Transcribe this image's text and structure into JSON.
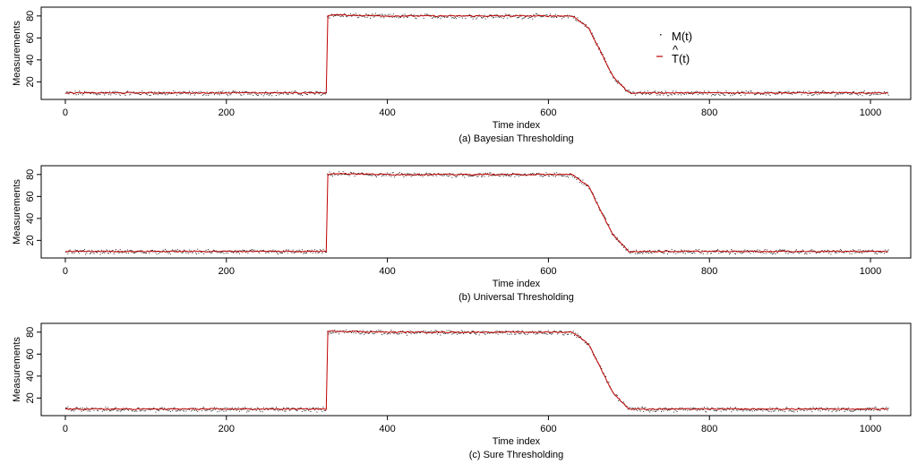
{
  "colors": {
    "observed_points": "#222222",
    "estimate_line": "#c00000",
    "frame": "#000000",
    "background": "#ffffff"
  },
  "legend": {
    "observed_label": "M(t)",
    "estimate_label": "T(t)",
    "estimate_hat": "^"
  },
  "chart_data": [
    {
      "type": "line",
      "caption": "(a) Bayesian Thresholding",
      "xlabel": "Time index",
      "ylabel": "Measurements",
      "xlim": [
        -30,
        1050
      ],
      "ylim": [
        4,
        88
      ],
      "xticks": [
        0,
        200,
        400,
        600,
        800,
        1000
      ],
      "yticks": [
        20,
        40,
        60,
        80
      ],
      "legend": "top-right",
      "series": [
        {
          "name": "M(t)",
          "style": "points",
          "x": [
            0,
            100,
            200,
            300,
            324,
            325,
            330,
            400,
            500,
            600,
            630,
            650,
            680,
            700,
            800,
            900,
            1000,
            1023
          ],
          "y": [
            10,
            10,
            10,
            10,
            10,
            80,
            81,
            80,
            80,
            80,
            80,
            69,
            25,
            10,
            10,
            10,
            10,
            10
          ]
        },
        {
          "name": "T(t)",
          "style": "line",
          "x": [
            0,
            100,
            200,
            300,
            324,
            325,
            330,
            400,
            500,
            600,
            630,
            650,
            680,
            700,
            800,
            900,
            1000,
            1023
          ],
          "y": [
            10,
            10,
            10,
            10,
            10,
            80,
            81,
            80,
            80,
            80,
            80,
            69,
            25,
            10,
            10,
            10,
            10,
            10
          ]
        }
      ]
    },
    {
      "type": "line",
      "caption": "(b) Universal Thresholding",
      "xlabel": "Time index",
      "ylabel": "Measurements",
      "xlim": [
        -30,
        1050
      ],
      "ylim": [
        4,
        88
      ],
      "xticks": [
        0,
        200,
        400,
        600,
        800,
        1000
      ],
      "yticks": [
        20,
        40,
        60,
        80
      ],
      "series": [
        {
          "name": "M(t)",
          "style": "points",
          "x": [
            0,
            100,
            200,
            300,
            324,
            325,
            330,
            400,
            500,
            600,
            630,
            650,
            680,
            700,
            800,
            900,
            1000,
            1023
          ],
          "y": [
            10,
            10,
            10,
            10,
            10,
            80,
            81,
            80,
            80,
            80,
            80,
            69,
            25,
            10,
            10,
            10,
            10,
            10
          ]
        },
        {
          "name": "T(t)",
          "style": "line",
          "x": [
            0,
            100,
            200,
            300,
            324,
            325,
            330,
            400,
            500,
            600,
            630,
            650,
            680,
            700,
            800,
            900,
            1000,
            1023
          ],
          "y": [
            10,
            10,
            10,
            10,
            10,
            80,
            81,
            80,
            80,
            80,
            80,
            69,
            25,
            10,
            10,
            10,
            10,
            10
          ]
        }
      ]
    },
    {
      "type": "line",
      "caption": "(c) Sure Thresholding",
      "xlabel": "Time index",
      "ylabel": "Measurements",
      "xlim": [
        -30,
        1050
      ],
      "ylim": [
        4,
        88
      ],
      "xticks": [
        0,
        200,
        400,
        600,
        800,
        1000
      ],
      "yticks": [
        20,
        40,
        60,
        80
      ],
      "series": [
        {
          "name": "M(t)",
          "style": "points",
          "x": [
            0,
            100,
            200,
            300,
            324,
            325,
            330,
            400,
            500,
            600,
            630,
            650,
            680,
            700,
            800,
            900,
            1000,
            1023
          ],
          "y": [
            10,
            10,
            10,
            10,
            10,
            80,
            81,
            80,
            80,
            80,
            80,
            69,
            25,
            10,
            10,
            10,
            10,
            10
          ]
        },
        {
          "name": "T(t)",
          "style": "line",
          "x": [
            0,
            100,
            200,
            300,
            324,
            325,
            330,
            400,
            500,
            600,
            630,
            650,
            680,
            700,
            800,
            900,
            1000,
            1023
          ],
          "y": [
            10,
            10,
            10,
            10,
            10,
            80,
            81,
            80,
            80,
            80,
            80,
            69,
            25,
            10,
            10,
            10,
            10,
            10
          ]
        }
      ]
    }
  ]
}
